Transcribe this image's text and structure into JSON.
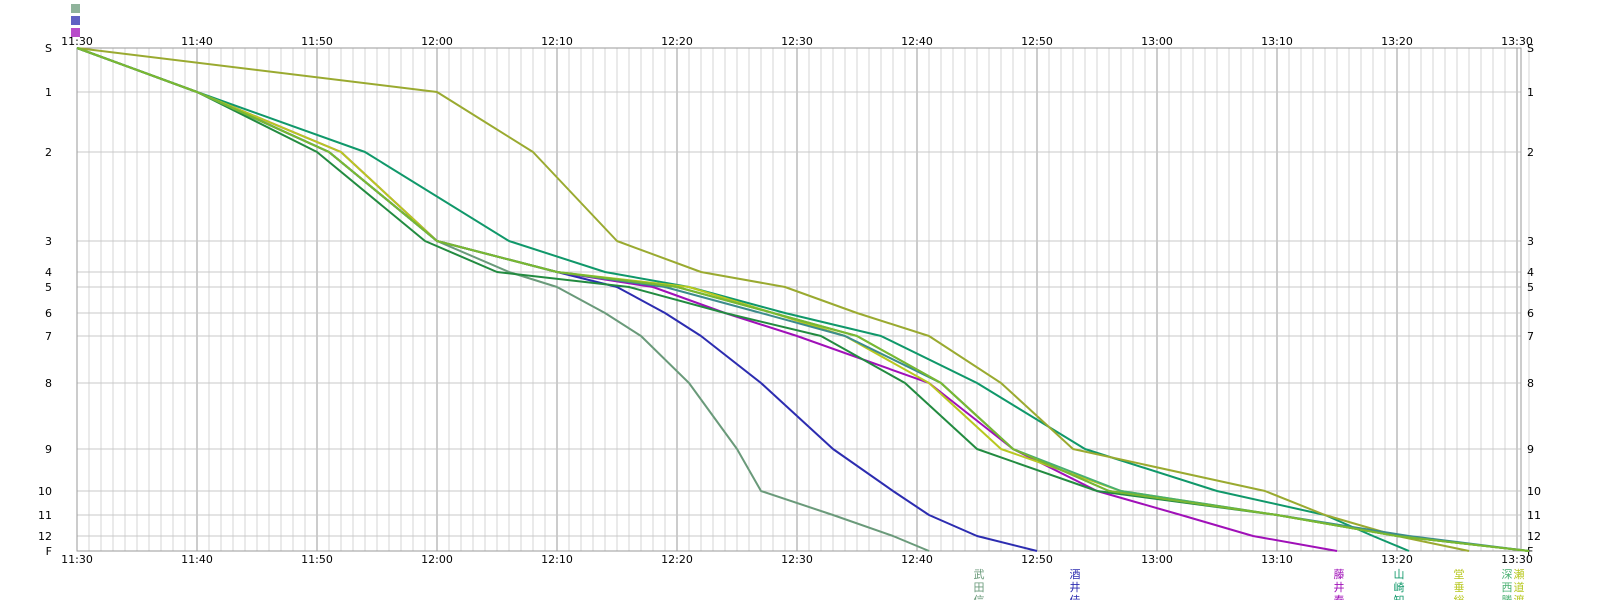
{
  "chart_data": {
    "type": "line",
    "title": "",
    "xlabel": "",
    "ylabel": "",
    "x_ticks": [
      "11:30",
      "11:40",
      "11:50",
      "12:00",
      "12:10",
      "12:20",
      "12:30",
      "12:40",
      "12:50",
      "13:00",
      "13:10",
      "13:20",
      "13:30"
    ],
    "x_range": [
      "11:30",
      "13:32"
    ],
    "y_ticks": [
      "S",
      "1",
      "2",
      "3",
      "4",
      "5",
      "6",
      "7",
      "8",
      "9",
      "10",
      "11",
      "12",
      "F"
    ],
    "grid": true,
    "legend": "none",
    "top_legend_glyphs": 3,
    "series": [
      {
        "name": "武田信",
        "color": "#6a9a7a",
        "points": [
          [
            "11:30",
            "S"
          ],
          [
            "11:40",
            "1"
          ],
          [
            "11:51",
            "2"
          ],
          [
            "12:00",
            "3"
          ],
          [
            "12:06",
            "4"
          ],
          [
            "12:10",
            "5"
          ],
          [
            "12:14",
            "6"
          ],
          [
            "12:17",
            "7"
          ],
          [
            "12:21",
            "8"
          ],
          [
            "12:25",
            "9"
          ],
          [
            "12:27",
            "10"
          ],
          [
            "12:33",
            "11"
          ],
          [
            "12:38",
            "12"
          ],
          [
            "12:41",
            "F"
          ]
        ]
      },
      {
        "name": "酒井佳",
        "color": "#2c2cb0",
        "points": [
          [
            "11:30",
            "S"
          ],
          [
            "11:40",
            "1"
          ],
          [
            "11:51",
            "2"
          ],
          [
            "12:00",
            "3"
          ],
          [
            "12:10",
            "4"
          ],
          [
            "12:15",
            "5"
          ],
          [
            "12:19",
            "6"
          ],
          [
            "12:22",
            "7"
          ],
          [
            "12:27",
            "8"
          ],
          [
            "12:33",
            "9"
          ],
          [
            "12:38",
            "10"
          ],
          [
            "12:41",
            "11"
          ],
          [
            "12:45",
            "12"
          ],
          [
            "12:50",
            "F"
          ]
        ]
      },
      {
        "name": "藤井春",
        "color": "#a010b8",
        "points": [
          [
            "11:30",
            "S"
          ],
          [
            "11:40",
            "1"
          ],
          [
            "11:52",
            "2"
          ],
          [
            "12:00",
            "3"
          ],
          [
            "12:10",
            "4"
          ],
          [
            "12:18",
            "5"
          ],
          [
            "12:24",
            "6"
          ],
          [
            "12:30",
            "7"
          ],
          [
            "12:41",
            "8"
          ],
          [
            "12:48",
            "9"
          ],
          [
            "12:55",
            "10"
          ],
          [
            "13:02",
            "11"
          ],
          [
            "13:08",
            "12"
          ],
          [
            "13:15",
            "F"
          ]
        ]
      },
      {
        "name": "山崎知",
        "color": "#10986a",
        "points": [
          [
            "11:30",
            "S"
          ],
          [
            "11:40",
            "1"
          ],
          [
            "11:54",
            "2"
          ],
          [
            "12:06",
            "3"
          ],
          [
            "12:14",
            "4"
          ],
          [
            "12:21",
            "5"
          ],
          [
            "12:29",
            "6"
          ],
          [
            "12:37",
            "7"
          ],
          [
            "12:45",
            "8"
          ],
          [
            "12:54",
            "9"
          ],
          [
            "13:05",
            "10"
          ],
          [
            "13:14",
            "11"
          ],
          [
            "13:18",
            "12"
          ],
          [
            "13:21",
            "F"
          ]
        ]
      },
      {
        "name": "",
        "color": "#9aaa30",
        "points": [
          [
            "11:30",
            "S"
          ],
          [
            "12:00",
            "1"
          ],
          [
            "12:08",
            "2"
          ],
          [
            "12:15",
            "3"
          ],
          [
            "12:22",
            "4"
          ],
          [
            "12:29",
            "5"
          ],
          [
            "12:35",
            "6"
          ],
          [
            "12:41",
            "7"
          ],
          [
            "12:47",
            "8"
          ],
          [
            "12:53",
            "9"
          ],
          [
            "13:09",
            "10"
          ],
          [
            "13:14",
            "11"
          ],
          [
            "13:20",
            "12"
          ],
          [
            "13:26",
            "F"
          ]
        ]
      },
      {
        "name": "",
        "color": "#228b40",
        "points": [
          [
            "11:30",
            "S"
          ],
          [
            "11:40",
            "1"
          ],
          [
            "11:50",
            "2"
          ],
          [
            "11:59",
            "3"
          ],
          [
            "12:05",
            "4"
          ],
          [
            "12:16",
            "5"
          ],
          [
            "12:24",
            "6"
          ],
          [
            "12:32",
            "7"
          ],
          [
            "12:39",
            "8"
          ],
          [
            "12:45",
            "9"
          ],
          [
            "12:55",
            "10"
          ],
          [
            "13:10",
            "11"
          ],
          [
            "13:20",
            "12"
          ],
          [
            "13:31",
            "F"
          ]
        ]
      },
      {
        "name": "",
        "color": "#b8c820",
        "points": [
          [
            "11:30",
            "S"
          ],
          [
            "11:40",
            "1"
          ],
          [
            "11:52",
            "2"
          ],
          [
            "12:00",
            "3"
          ],
          [
            "12:10",
            "4"
          ],
          [
            "12:21",
            "5"
          ],
          [
            "12:28",
            "6"
          ],
          [
            "12:34",
            "7"
          ],
          [
            "12:41",
            "8"
          ],
          [
            "12:47",
            "9"
          ],
          [
            "12:57",
            "10"
          ],
          [
            "13:10",
            "11"
          ],
          [
            "13:20",
            "12"
          ],
          [
            "13:31",
            "F"
          ]
        ]
      },
      {
        "name": "",
        "color": "#48b070",
        "points": [
          [
            "11:30",
            "S"
          ],
          [
            "11:40",
            "1"
          ],
          [
            "11:51",
            "2"
          ],
          [
            "12:00",
            "3"
          ],
          [
            "12:10",
            "4"
          ],
          [
            "12:20",
            "5"
          ],
          [
            "12:28",
            "6"
          ],
          [
            "12:35",
            "7"
          ],
          [
            "12:42",
            "8"
          ],
          [
            "12:48",
            "9"
          ],
          [
            "12:57",
            "10"
          ],
          [
            "13:10",
            "11"
          ],
          [
            "13:20",
            "12"
          ],
          [
            "13:31",
            "F"
          ]
        ]
      },
      {
        "name": "",
        "color": "#3c8c8c",
        "points": [
          [
            "11:30",
            "S"
          ],
          [
            "11:40",
            "1"
          ],
          [
            "11:51",
            "2"
          ],
          [
            "12:00",
            "3"
          ],
          [
            "12:10",
            "4"
          ],
          [
            "12:19",
            "5"
          ],
          [
            "12:27",
            "6"
          ],
          [
            "12:34",
            "7"
          ],
          [
            "12:42",
            "8"
          ],
          [
            "12:48",
            "9"
          ],
          [
            "12:56",
            "10"
          ],
          [
            "13:10",
            "11"
          ],
          [
            "13:21",
            "12"
          ],
          [
            "13:31",
            "F"
          ]
        ]
      },
      {
        "name": "",
        "color": "#7ab830",
        "points": [
          [
            "11:30",
            "S"
          ],
          [
            "11:40",
            "1"
          ],
          [
            "11:51",
            "2"
          ],
          [
            "12:00",
            "3"
          ],
          [
            "12:10",
            "4"
          ],
          [
            "12:20",
            "5"
          ],
          [
            "12:28",
            "6"
          ],
          [
            "12:35",
            "7"
          ],
          [
            "12:42",
            "8"
          ],
          [
            "12:48",
            "9"
          ],
          [
            "12:56",
            "10"
          ],
          [
            "13:10",
            "11"
          ],
          [
            "13:20",
            "12"
          ],
          [
            "13:31",
            "F"
          ]
        ]
      }
    ],
    "finish_labels": [
      {
        "text": [
          "武",
          "田",
          "信"
        ],
        "color": "#6a9a7a",
        "x": "12:46"
      },
      {
        "text": [
          "酒",
          "井",
          "佳"
        ],
        "color": "#2c2cb0",
        "x": "12:54"
      },
      {
        "text": [
          "藤",
          "井",
          "春"
        ],
        "color": "#a010b8",
        "x": "13:16"
      },
      {
        "text": [
          "山",
          "崎",
          "知"
        ],
        "color": "#10986a",
        "x": "13:21"
      },
      {
        "text": [
          "堂",
          "垂",
          "総"
        ],
        "color": "#b8c820",
        "x": "13:26"
      },
      {
        "text": [
          "深",
          "西",
          "勝"
        ],
        "color": "#48b070",
        "x": "13:30"
      },
      {
        "text": [
          "瀬",
          "道",
          "渡"
        ],
        "color": "#b8c820",
        "x": "13:31"
      }
    ]
  }
}
